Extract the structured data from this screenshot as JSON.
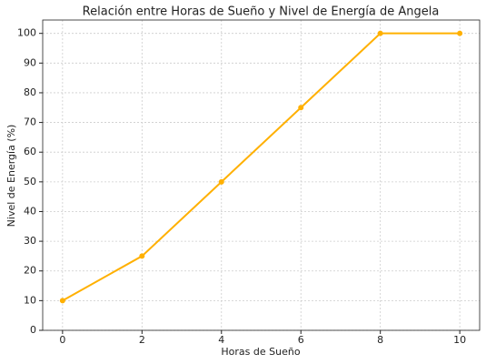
{
  "chart_data": {
    "type": "line",
    "title": "Relación entre Horas de Sueño y Nivel de Energía de Angela",
    "x_label": "Horas de Sueño",
    "y_label": "Nivel de Energía (%)",
    "x": [
      0,
      2,
      4,
      6,
      8,
      10
    ],
    "series": [
      {
        "name": "Nivel de Energía",
        "color": "#ffb000",
        "values": [
          10,
          25,
          50,
          75,
          100,
          100
        ]
      }
    ],
    "xlim": [
      -0.5,
      10.5
    ],
    "xticks": [
      0,
      2,
      4,
      6,
      8,
      10
    ],
    "ylim": [
      0,
      104.5
    ],
    "yticks": [
      0,
      10,
      20,
      30,
      40,
      50,
      60,
      70,
      80,
      90,
      100
    ],
    "grid": true,
    "legend": false
  }
}
